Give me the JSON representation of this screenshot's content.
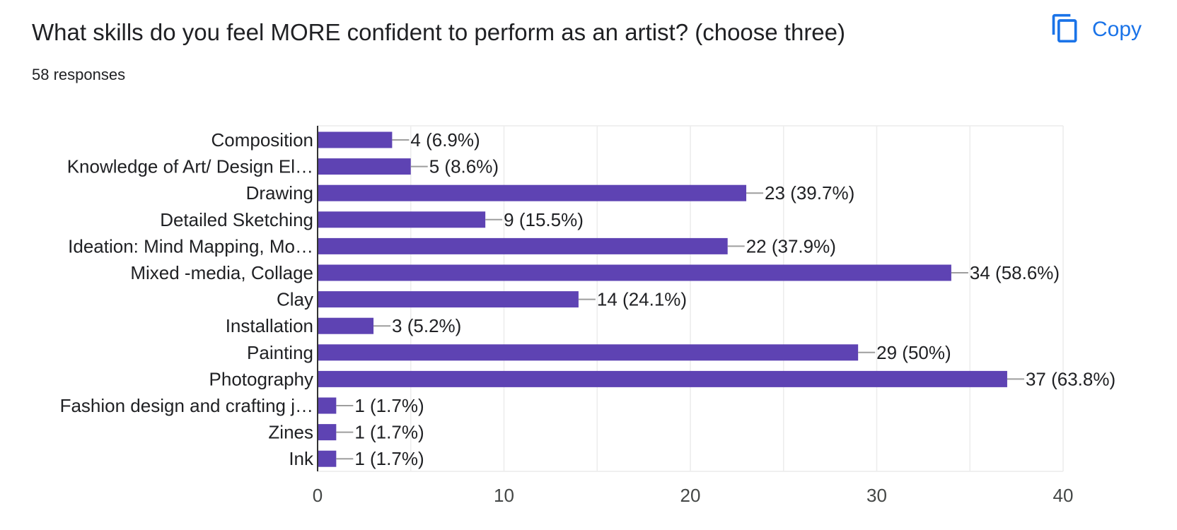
{
  "question": {
    "title": "What skills do you feel MORE confident to perform as an artist?  (choose three)",
    "responses": "58 responses",
    "copy_label": "Copy",
    "copy_icon": "copy-icon"
  },
  "colors": {
    "bar": "#5e43b3",
    "accent": "#1a73e8",
    "grid": "#ececec",
    "axis": "#333333",
    "leader": "#9e9e9e"
  },
  "chart_data": {
    "type": "bar",
    "orientation": "horizontal",
    "title": "",
    "xlabel": "",
    "ylabel": "",
    "xlim": [
      0,
      40
    ],
    "ticks": [
      0,
      10,
      20,
      30,
      40
    ],
    "grid": true,
    "categories": [
      "Composition",
      "Knowledge of Art/ Design El…",
      "Drawing",
      "Detailed Sketching",
      "Ideation: Mind Mapping, Mo…",
      "Mixed -media, Collage",
      "Clay",
      "Installation",
      "Painting",
      "Photography",
      "Fashion design and crafting j…",
      "Zines",
      "Ink"
    ],
    "values": [
      4,
      5,
      23,
      9,
      22,
      34,
      14,
      3,
      29,
      37,
      1,
      1,
      1
    ],
    "labels": [
      "4 (6.9%)",
      "5 (8.6%)",
      "23 (39.7%)",
      "9 (15.5%)",
      "22 (37.9%)",
      "34 (58.6%)",
      "14 (24.1%)",
      "3 (5.2%)",
      "29 (50%)",
      "37 (63.8%)",
      "1 (1.7%)",
      "1 (1.7%)",
      "1 (1.7%)"
    ]
  }
}
